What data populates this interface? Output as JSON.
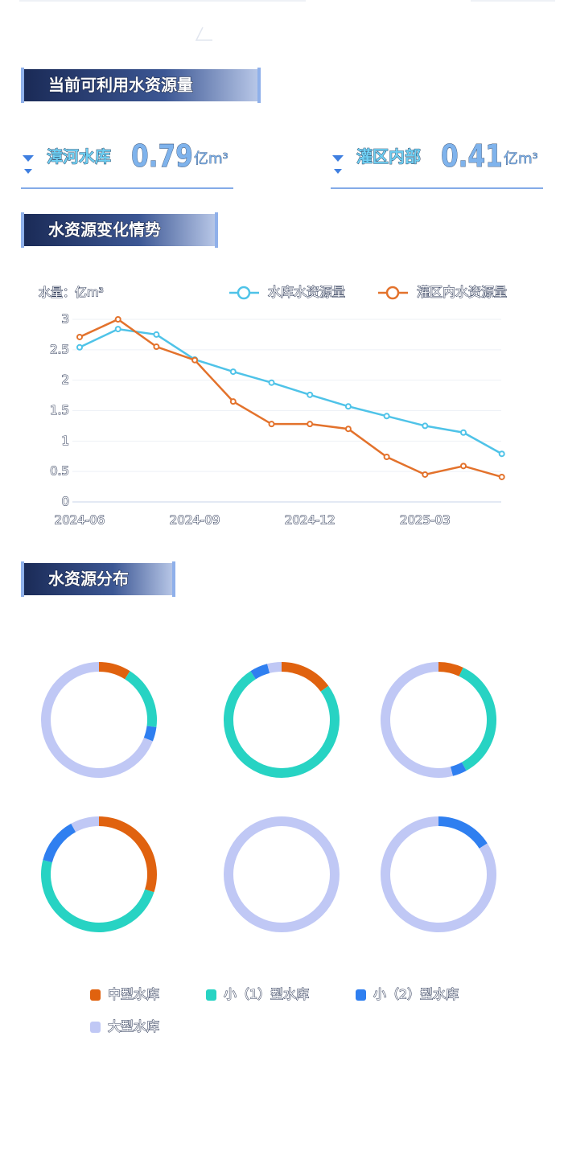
{
  "sections": [
    {
      "title": "当前可利用水资源量"
    },
    {
      "title": "水资源变化情势"
    },
    {
      "title": "水资源分布"
    }
  ],
  "stats": [
    {
      "label": "漳河水库",
      "value": 0.79,
      "unit": "亿m³"
    },
    {
      "label": "灌区内部",
      "value": 0.41,
      "unit": "亿m³"
    }
  ],
  "chart_data": [
    {
      "type": "line",
      "y_label": "水量：亿m³",
      "categories": [
        "2024-06",
        null,
        null,
        "2024-09",
        null,
        null,
        "2024-12",
        null,
        null,
        "2025-03",
        null,
        null
      ],
      "series": [
        {
          "name": "水库水资源量",
          "color": "#4fc3e8",
          "values": [
            2.54,
            2.84,
            2.75,
            2.34,
            2.14,
            1.96,
            1.76,
            1.57,
            1.41,
            1.25,
            1.14,
            0.79
          ]
        },
        {
          "name": "灌区内水资源量",
          "color": "#e3722c",
          "values": [
            2.71,
            3.0,
            2.55,
            2.33,
            1.65,
            1.28,
            1.28,
            1.2,
            0.74,
            0.45,
            0.59,
            0.41
          ]
        }
      ],
      "ylim": [
        0,
        3
      ],
      "yticks": [
        0,
        0.5,
        1,
        1.5,
        2,
        2.5,
        3
      ],
      "grid": true
    },
    {
      "type": "donut",
      "series": [
        {
          "name": "中型水库",
          "color": "#e0620f",
          "values": [
            9,
            15,
            7,
            30,
            0,
            0
          ]
        },
        {
          "name": "小（1）型水库",
          "color": "#27d3c3",
          "values": [
            18,
            76,
            35,
            49,
            0,
            0
          ]
        },
        {
          "name": "小（2）型水库",
          "color": "#2f7ff0",
          "values": [
            4,
            5,
            4,
            13,
            0,
            16
          ]
        },
        {
          "name": "大型水库",
          "color": "#c0c8f5",
          "values": [
            69,
            4,
            54,
            8,
            100,
            84
          ]
        }
      ]
    }
  ]
}
